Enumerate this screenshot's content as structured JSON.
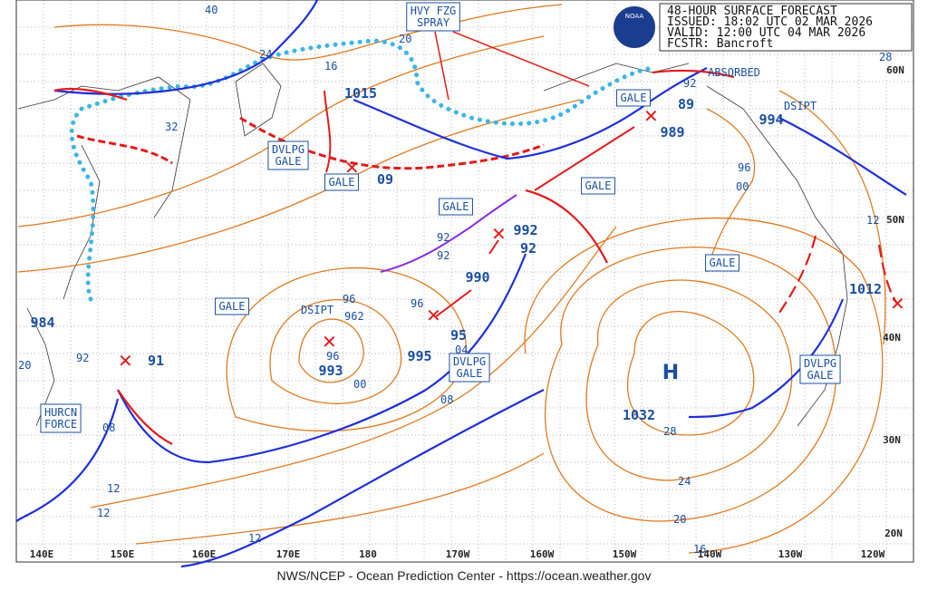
{
  "header": {
    "logo": "NOAA",
    "lines": [
      "48-HOUR SURFACE FORECAST",
      "ISSUED: 18:02 UTC 02 MAR 2026",
      "VALID:  12:00 UTC 04 MAR 2026",
      "FCSTR:  Bancroft"
    ]
  },
  "warnings": [
    {
      "lines": [
        "HVY FZG",
        "SPRAY"
      ]
    },
    {
      "lines": [
        "DVLPG",
        "GALE"
      ]
    },
    {
      "lines": [
        "GALE"
      ]
    },
    {
      "lines": [
        "GALE"
      ]
    },
    {
      "lines": [
        "GALE"
      ]
    },
    {
      "lines": [
        "GALE"
      ]
    },
    {
      "lines": [
        "GALE"
      ]
    },
    {
      "lines": [
        "GALE"
      ]
    },
    {
      "lines": [
        "DVLPG",
        "GALE"
      ]
    },
    {
      "lines": [
        "DVLPG",
        "GALE"
      ]
    },
    {
      "lines": [
        "HURCN",
        "FORCE"
      ]
    }
  ],
  "notes": [
    "ABSORBED",
    "DSIPT",
    "DSIPT"
  ],
  "pressures": [
    "1015",
    "09",
    "992",
    "92",
    "990",
    "995",
    "95",
    "993",
    "984",
    "91",
    "1032",
    "989",
    "89",
    "994",
    "1012"
  ],
  "high_symbol": "H",
  "isobar_labels": [
    "40",
    "24",
    "20",
    "32",
    "16",
    "28",
    "12",
    "96",
    "00",
    "92",
    "96",
    "96",
    "96",
    "00",
    "04",
    "08",
    "28",
    "24",
    "20",
    "16",
    "12",
    "12",
    "12",
    "08",
    "20",
    "92",
    "92",
    "92",
    "962"
  ],
  "longitudes": [
    "140E",
    "150E",
    "160E",
    "170E",
    "180",
    "170W",
    "160W",
    "150W",
    "140W",
    "130W",
    "120W"
  ],
  "latitudes": [
    "60N",
    "50N",
    "40N",
    "30N",
    "20N"
  ],
  "footer": "NWS/NCEP - Ocean Prediction Center - https://ocean.weather.gov"
}
